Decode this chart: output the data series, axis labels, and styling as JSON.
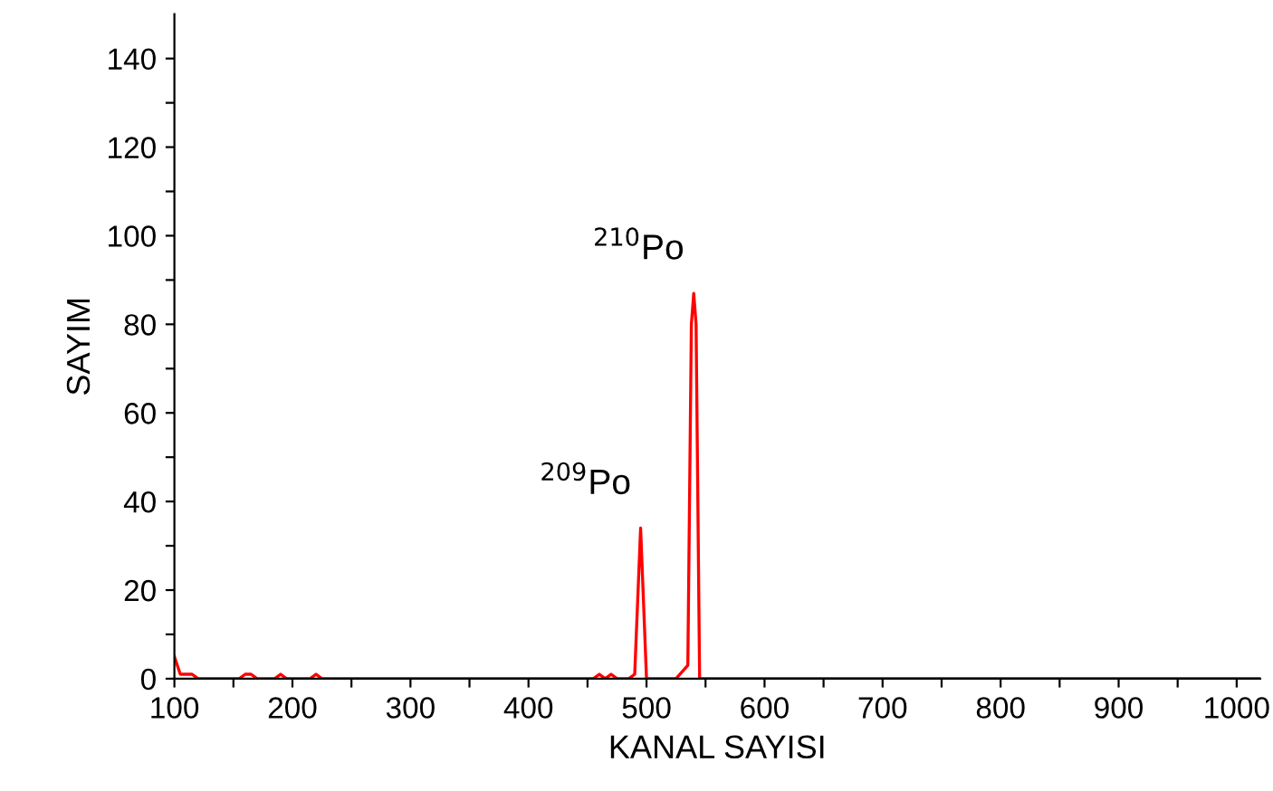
{
  "chart_data": {
    "type": "line",
    "xlabel": "KANAL SAYISI",
    "ylabel": "SAYIM",
    "x": [
      100,
      105,
      115,
      120,
      155,
      160,
      165,
      170,
      185,
      190,
      195,
      215,
      220,
      225,
      455,
      460,
      465,
      470,
      475,
      485,
      490,
      495,
      500,
      525,
      535,
      538,
      540,
      542,
      545,
      1020
    ],
    "series": [
      {
        "color": "#ff0000",
        "values": [
          5,
          1,
          1,
          0,
          0,
          1,
          1,
          0,
          0,
          1,
          0,
          0,
          1,
          0,
          0,
          1,
          0,
          1,
          0,
          0,
          1,
          34,
          0,
          0,
          3,
          80,
          87,
          80,
          0,
          0
        ]
      }
    ],
    "xlim": [
      100,
      1020
    ],
    "ylim": [
      0,
      150
    ],
    "xticks": [
      100,
      {
        "value": 150,
        "label": null
      },
      200,
      {
        "value": 250,
        "label": null
      },
      300,
      {
        "value": 350,
        "label": null
      },
      400,
      {
        "value": 450,
        "label": null
      },
      500,
      {
        "value": 550,
        "label": null
      },
      600,
      {
        "value": 650,
        "label": null
      },
      700,
      {
        "value": 750,
        "label": null
      },
      800,
      {
        "value": 850,
        "label": null
      },
      900,
      {
        "value": 950,
        "label": null
      },
      1000
    ],
    "yticks": [
      0,
      {
        "value": 10,
        "label": null
      },
      20,
      {
        "value": 30,
        "label": null
      },
      40,
      {
        "value": 50,
        "label": null
      },
      60,
      {
        "value": 70,
        "label": null
      },
      80,
      {
        "value": 90,
        "label": null
      },
      100,
      {
        "value": 110,
        "label": null
      },
      120,
      {
        "value": 130,
        "label": null
      },
      140
    ],
    "annotations": [
      {
        "text": "$^{209}$Po",
        "x": 495,
        "y": 34
      },
      {
        "text": "$^{210}$Po",
        "x": 540,
        "y": 87
      }
    ],
    "grid": false,
    "legend": false,
    "marker": "none",
    "line_style": "solid"
  }
}
